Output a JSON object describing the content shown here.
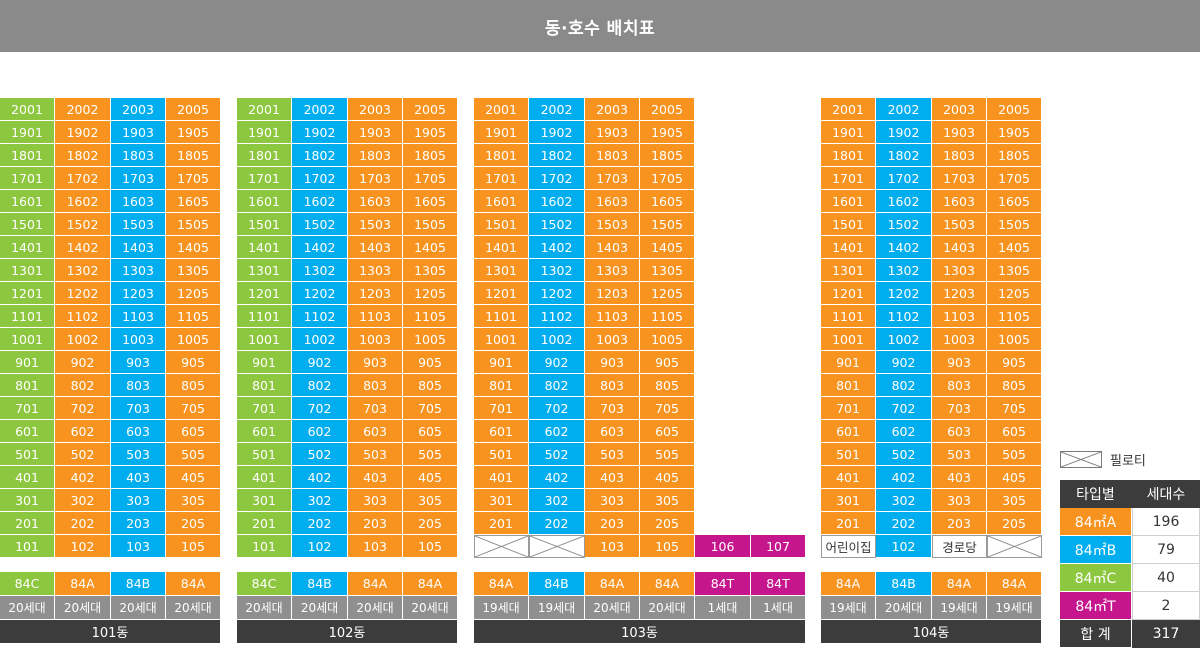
{
  "title": "동·호수 배치표",
  "colors": {
    "84A": "#f7931e",
    "84B": "#00aeef",
    "84C": "#8dc63f",
    "84T": "#c6168d"
  },
  "floors": [
    "20",
    "19",
    "18",
    "17",
    "16",
    "15",
    "14",
    "13",
    "12",
    "11",
    "10",
    "9",
    "8",
    "7",
    "6",
    "5",
    "4",
    "3",
    "2",
    "1"
  ],
  "buildings": [
    {
      "name": "101동",
      "columns": [
        {
          "type": "84C",
          "line": "01",
          "households": "20세대",
          "top": "20"
        },
        {
          "type": "84A",
          "line": "02",
          "households": "20세대",
          "top": "20"
        },
        {
          "type": "84B",
          "line": "03",
          "households": "20세대",
          "top": "20"
        },
        {
          "type": "84A",
          "line": "05",
          "households": "20세대",
          "top": "20"
        }
      ],
      "ground": [
        "101",
        "102",
        "103",
        "105"
      ]
    },
    {
      "name": "102동",
      "columns": [
        {
          "type": "84C",
          "line": "01",
          "households": "20세대",
          "top": "20"
        },
        {
          "type": "84B",
          "line": "02",
          "households": "20세대",
          "top": "20"
        },
        {
          "type": "84A",
          "line": "03",
          "households": "20세대",
          "top": "20"
        },
        {
          "type": "84A",
          "line": "05",
          "households": "20세대",
          "top": "20"
        }
      ],
      "ground": [
        "101",
        "102",
        "103",
        "105"
      ]
    },
    {
      "name": "103동",
      "columns": [
        {
          "type": "84A",
          "line": "01",
          "households": "19세대",
          "top": "20"
        },
        {
          "type": "84B",
          "line": "02",
          "households": "19세대",
          "top": "20"
        },
        {
          "type": "84A",
          "line": "03",
          "households": "20세대",
          "top": "20"
        },
        {
          "type": "84A",
          "line": "05",
          "households": "20세대",
          "top": "20"
        },
        {
          "type": "84T",
          "line": "06",
          "households": "1세대",
          "top": "1"
        },
        {
          "type": "84T",
          "line": "07",
          "households": "1세대",
          "top": "1"
        }
      ],
      "ground": [
        "pilotis",
        "pilotis",
        "103",
        "105",
        "106",
        "107"
      ]
    },
    {
      "name": "104동",
      "columns": [
        {
          "type": "84A",
          "line": "01",
          "households": "19세대",
          "top": "20"
        },
        {
          "type": "84B",
          "line": "02",
          "households": "20세대",
          "top": "20"
        },
        {
          "type": "84A",
          "line": "03",
          "households": "19세대",
          "top": "20"
        },
        {
          "type": "84A",
          "line": "05",
          "households": "19세대",
          "top": "20"
        }
      ],
      "ground": [
        "어린이집",
        "102",
        "경로당",
        "pilotis"
      ]
    }
  ],
  "legend": {
    "pilotis_label": "필로티",
    "header": [
      "타입별",
      "세대수"
    ],
    "rows": [
      {
        "type": "84㎡A",
        "key": "84A",
        "count": "196"
      },
      {
        "type": "84㎡B",
        "key": "84B",
        "count": "79"
      },
      {
        "type": "84㎡C",
        "key": "84C",
        "count": "40"
      },
      {
        "type": "84㎡T",
        "key": "84T",
        "count": "2"
      }
    ],
    "total_label": "합 계",
    "total": "317"
  }
}
